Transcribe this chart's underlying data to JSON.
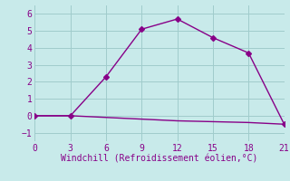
{
  "line1_x": [
    0,
    3,
    6,
    9,
    12,
    15,
    18,
    21
  ],
  "line1_y": [
    0.0,
    0.0,
    2.3,
    5.1,
    5.7,
    4.6,
    3.7,
    -0.5
  ],
  "line2_x": [
    0,
    3,
    6,
    9,
    12,
    15,
    18,
    21
  ],
  "line2_y": [
    0.0,
    0.0,
    -0.1,
    -0.2,
    -0.3,
    -0.35,
    -0.4,
    -0.5
  ],
  "line_color": "#880088",
  "bg_color": "#c8eaea",
  "grid_color": "#a0cccc",
  "xlabel": "Windchill (Refroidissement éolien,°C)",
  "xlim": [
    0,
    21
  ],
  "ylim": [
    -1.5,
    6.5
  ],
  "xticks": [
    0,
    3,
    6,
    9,
    12,
    15,
    18,
    21
  ],
  "yticks": [
    -1,
    0,
    1,
    2,
    3,
    4,
    5,
    6
  ],
  "marker": "D",
  "markersize": 3,
  "linewidth": 1.0
}
